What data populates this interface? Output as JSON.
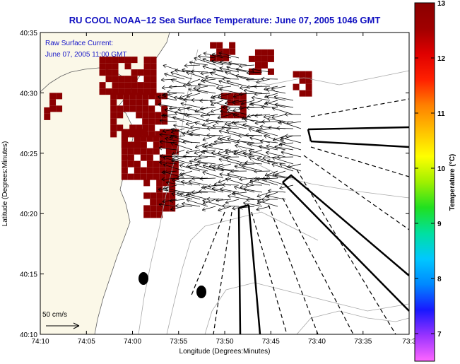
{
  "chart_data": {
    "type": "heatmap",
    "title": "RU COOL  NOAA−12  Sea Surface Temperature:  June 07, 2005 1046 GMT",
    "annotation": {
      "line1": "Raw Surface Current:",
      "line2": "June 07, 2005 11:00 GMT"
    },
    "xlabel": "Longitude (Degrees:Minutes)",
    "ylabel": "Latitude (Degrees:Minutes)",
    "xlim": [
      -74.1667,
      -73.5
    ],
    "ylim": [
      40.1667,
      40.5833
    ],
    "x_ticks": [
      {
        "v": -74.1667,
        "label": "74:10"
      },
      {
        "v": -74.0833,
        "label": "74:05"
      },
      {
        "v": -74.0,
        "label": "74:00"
      },
      {
        "v": -73.9167,
        "label": "73:55"
      },
      {
        "v": -73.8333,
        "label": "73:50"
      },
      {
        "v": -73.75,
        "label": "73:45"
      },
      {
        "v": -73.6667,
        "label": "73:40"
      },
      {
        "v": -73.5833,
        "label": "73:35"
      },
      {
        "v": -73.5,
        "label": "73:3"
      }
    ],
    "y_ticks": [
      {
        "v": 40.1667,
        "label": "40:10"
      },
      {
        "v": 40.25,
        "label": "40:15"
      },
      {
        "v": 40.3333,
        "label": "40:20"
      },
      {
        "v": 40.4167,
        "label": "40:25"
      },
      {
        "v": 40.5,
        "label": "40:30"
      },
      {
        "v": 40.5833,
        "label": "40:35"
      }
    ],
    "colorbar": {
      "label": "Temperature (°C)",
      "min": 6.5,
      "max": 13,
      "ticks": [
        7,
        8,
        9,
        10,
        11,
        12,
        13
      ],
      "colors": [
        "#ff66ff",
        "#9933ff",
        "#1818ff",
        "#0088ff",
        "#00c8ff",
        "#00e0a0",
        "#20e020",
        "#a0f000",
        "#ffff00",
        "#ffc000",
        "#ff8000",
        "#ff2000",
        "#e00000",
        "#a00000",
        "#8b0000"
      ]
    },
    "sst_color": "#8b0000",
    "scale_vector": {
      "label": "50 cm/s",
      "speed_cm_s": 50
    },
    "coverage": {
      "lon_lat_regions": [
        [
          -74.06,
          40.5,
          -73.96,
          40.55
        ],
        [
          -74.04,
          40.44,
          -73.94,
          40.5
        ],
        [
          -74.02,
          40.38,
          -73.92,
          40.45
        ],
        [
          -73.98,
          40.33,
          -73.93,
          40.38
        ],
        [
          -73.86,
          40.55,
          -73.82,
          40.57
        ],
        [
          -73.79,
          40.53,
          -73.75,
          40.56
        ],
        [
          -73.71,
          40.5,
          -73.68,
          40.53
        ],
        [
          -73.84,
          40.47,
          -73.8,
          40.5
        ],
        [
          -74.16,
          40.47,
          -74.15,
          40.48
        ],
        [
          -74.15,
          40.48,
          -74.13,
          40.5
        ],
        [
          -74.02,
          40.43,
          -73.99,
          40.45
        ]
      ]
    },
    "current_field": {
      "center_lon": -73.83,
      "center_lat": 40.43,
      "mean_u_cm_s": -30,
      "mean_v_cm_s": 2
    }
  }
}
